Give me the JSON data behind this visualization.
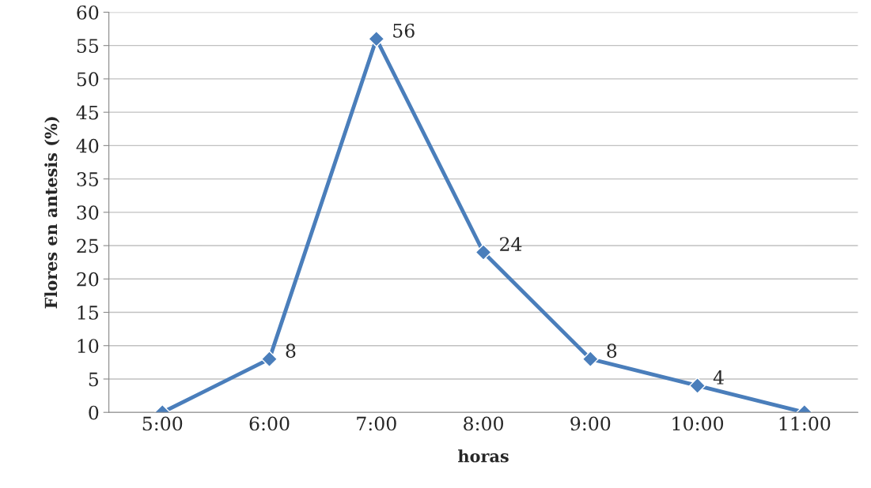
{
  "chart_data": {
    "type": "line",
    "xlabel": "horas",
    "ylabel": "Flores en antesis (%)",
    "categories": [
      "5:00",
      "6:00",
      "7:00",
      "8:00",
      "9:00",
      "10:00",
      "11:00"
    ],
    "series": [
      {
        "color": "#4a7ebb",
        "values": [
          0,
          8,
          56,
          24,
          8,
          4,
          0
        ],
        "value_labels": [
          null,
          "8",
          "56",
          "24",
          "8",
          "4",
          null
        ]
      }
    ],
    "ylim": [
      0,
      60
    ],
    "yticks": [
      0,
      5,
      10,
      15,
      20,
      25,
      30,
      35,
      40,
      45,
      50,
      55,
      60
    ],
    "grid": "y",
    "legend": false,
    "marker": "diamond",
    "line_style": "solid"
  }
}
